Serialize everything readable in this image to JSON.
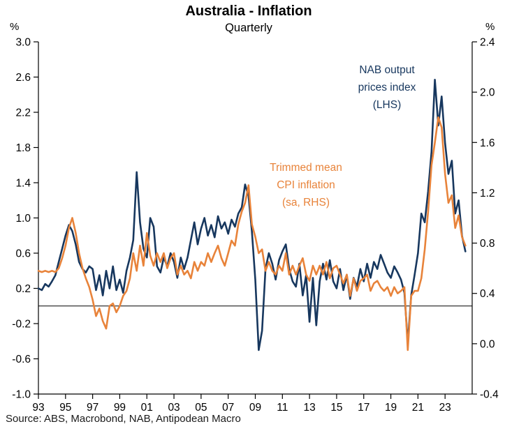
{
  "header": {
    "title": "Australia - Inflation",
    "subtitle": "Quarterly"
  },
  "axis_units": {
    "left": "%",
    "right": "%"
  },
  "annotations": {
    "nab": {
      "lines": [
        "NAB output",
        "prices index",
        "(LHS)"
      ],
      "color": "#17375e"
    },
    "cpi": {
      "lines": [
        "Trimmed mean",
        "CPI inflation",
        "(sa, RHS)"
      ],
      "color": "#e8833a"
    }
  },
  "source": "Source: ABS, Macrobond, NAB, Antipodean Macro",
  "chart_data": {
    "type": "line",
    "title": "Australia - Inflation",
    "subtitle": "Quarterly",
    "x_start": 1993,
    "x_step": 0.25,
    "x_range": [
      1993,
      2025
    ],
    "x_ticks": [
      1993,
      1995,
      1997,
      1999,
      2001,
      2003,
      2005,
      2007,
      2009,
      2011,
      2013,
      2015,
      2017,
      2019,
      2021,
      2023
    ],
    "x_tick_labels": [
      "93",
      "95",
      "97",
      "99",
      "01",
      "03",
      "05",
      "07",
      "09",
      "11",
      "13",
      "15",
      "17",
      "19",
      "21",
      "23"
    ],
    "left_axis": {
      "unit": "%",
      "min": -1.0,
      "max": 3.0,
      "ticks": [
        3.0,
        2.6,
        2.2,
        1.8,
        1.4,
        1.0,
        0.6,
        0.2,
        -0.2,
        -0.6,
        -1.0
      ],
      "tick_labels": [
        "3.0",
        "2.6",
        "2.2",
        "1.8",
        "1.4",
        "1.0",
        "0.6",
        "0.2",
        "-0.2",
        "-0.6",
        "-1.0"
      ]
    },
    "right_axis": {
      "unit": "%",
      "min": -0.4,
      "max": 2.4,
      "ticks": [
        2.4,
        2.0,
        1.6,
        1.2,
        0.8,
        0.4,
        0.0,
        -0.4
      ],
      "tick_labels": [
        "2.4",
        "2.0",
        "1.6",
        "1.2",
        "0.8",
        "0.4",
        "0.0",
        "-0.4"
      ]
    },
    "zero_line_lhs": 0,
    "grid": false,
    "series": [
      {
        "id": "nab-output-prices",
        "name": "NAB output prices index (LHS)",
        "axis": "left",
        "color": "#17375e",
        "width": 2.6,
        "values": [
          0.2,
          0.18,
          0.25,
          0.22,
          0.28,
          0.35,
          0.5,
          0.65,
          0.8,
          0.92,
          0.85,
          0.7,
          0.5,
          0.42,
          0.38,
          0.45,
          0.42,
          0.18,
          0.35,
          0.12,
          0.4,
          0.2,
          0.45,
          0.18,
          0.3,
          0.15,
          0.4,
          0.55,
          0.75,
          1.52,
          0.95,
          0.65,
          0.55,
          1.0,
          0.9,
          0.45,
          0.38,
          0.55,
          0.45,
          0.6,
          0.5,
          0.32,
          0.55,
          0.42,
          0.55,
          0.75,
          0.95,
          0.7,
          0.88,
          1.0,
          0.8,
          0.92,
          0.78,
          1.02,
          0.88,
          0.95,
          0.82,
          0.98,
          0.9,
          1.05,
          1.12,
          1.38,
          1.25,
          0.85,
          0.3,
          -0.5,
          -0.28,
          0.42,
          0.6,
          0.48,
          0.3,
          0.52,
          0.62,
          0.7,
          0.42,
          0.28,
          0.22,
          0.48,
          0.12,
          0.35,
          -0.18,
          0.32,
          -0.22,
          0.28,
          0.48,
          0.3,
          0.52,
          0.28,
          0.2,
          0.42,
          0.18,
          0.35,
          0.08,
          0.32,
          0.22,
          0.42,
          0.28,
          0.48,
          0.32,
          0.5,
          0.42,
          0.58,
          0.48,
          0.38,
          0.32,
          0.45,
          0.38,
          0.3,
          0.15,
          -0.42,
          0.12,
          0.35,
          0.6,
          1.05,
          0.95,
          1.3,
          1.75,
          2.57,
          2.05,
          2.38,
          1.85,
          1.5,
          1.65,
          1.05,
          1.2,
          0.8,
          0.62
        ]
      },
      {
        "id": "trimmed-mean-cpi",
        "name": "Trimmed mean CPI inflation (sa, RHS)",
        "axis": "right",
        "color": "#e8833a",
        "width": 2.6,
        "values": [
          0.58,
          0.57,
          0.58,
          0.57,
          0.58,
          0.57,
          0.6,
          0.68,
          0.78,
          0.92,
          1.0,
          0.88,
          0.72,
          0.6,
          0.52,
          0.45,
          0.35,
          0.22,
          0.28,
          0.18,
          0.12,
          0.3,
          0.32,
          0.25,
          0.3,
          0.38,
          0.42,
          0.52,
          0.72,
          0.58,
          0.78,
          0.62,
          0.88,
          0.7,
          0.62,
          0.72,
          0.65,
          0.72,
          0.6,
          0.68,
          0.72,
          0.55,
          0.62,
          0.55,
          0.58,
          0.52,
          0.65,
          0.58,
          0.65,
          0.62,
          0.72,
          0.65,
          0.72,
          0.78,
          0.68,
          0.62,
          0.72,
          0.82,
          0.78,
          0.95,
          1.05,
          1.12,
          1.26,
          0.95,
          0.85,
          0.72,
          0.75,
          0.58,
          0.65,
          0.58,
          0.55,
          0.62,
          0.58,
          0.72,
          0.55,
          0.62,
          0.55,
          0.62,
          0.68,
          0.55,
          0.5,
          0.62,
          0.55,
          0.62,
          0.55,
          0.65,
          0.52,
          0.6,
          0.62,
          0.55,
          0.48,
          0.55,
          0.38,
          0.52,
          0.42,
          0.5,
          0.52,
          0.55,
          0.42,
          0.48,
          0.5,
          0.45,
          0.42,
          0.45,
          0.38,
          0.45,
          0.4,
          0.42,
          0.45,
          -0.05,
          0.38,
          0.42,
          0.42,
          0.52,
          0.75,
          1.05,
          1.42,
          1.6,
          1.8,
          1.72,
          1.35,
          1.12,
          1.18,
          0.92,
          1.02,
          0.85,
          0.78
        ]
      }
    ]
  }
}
